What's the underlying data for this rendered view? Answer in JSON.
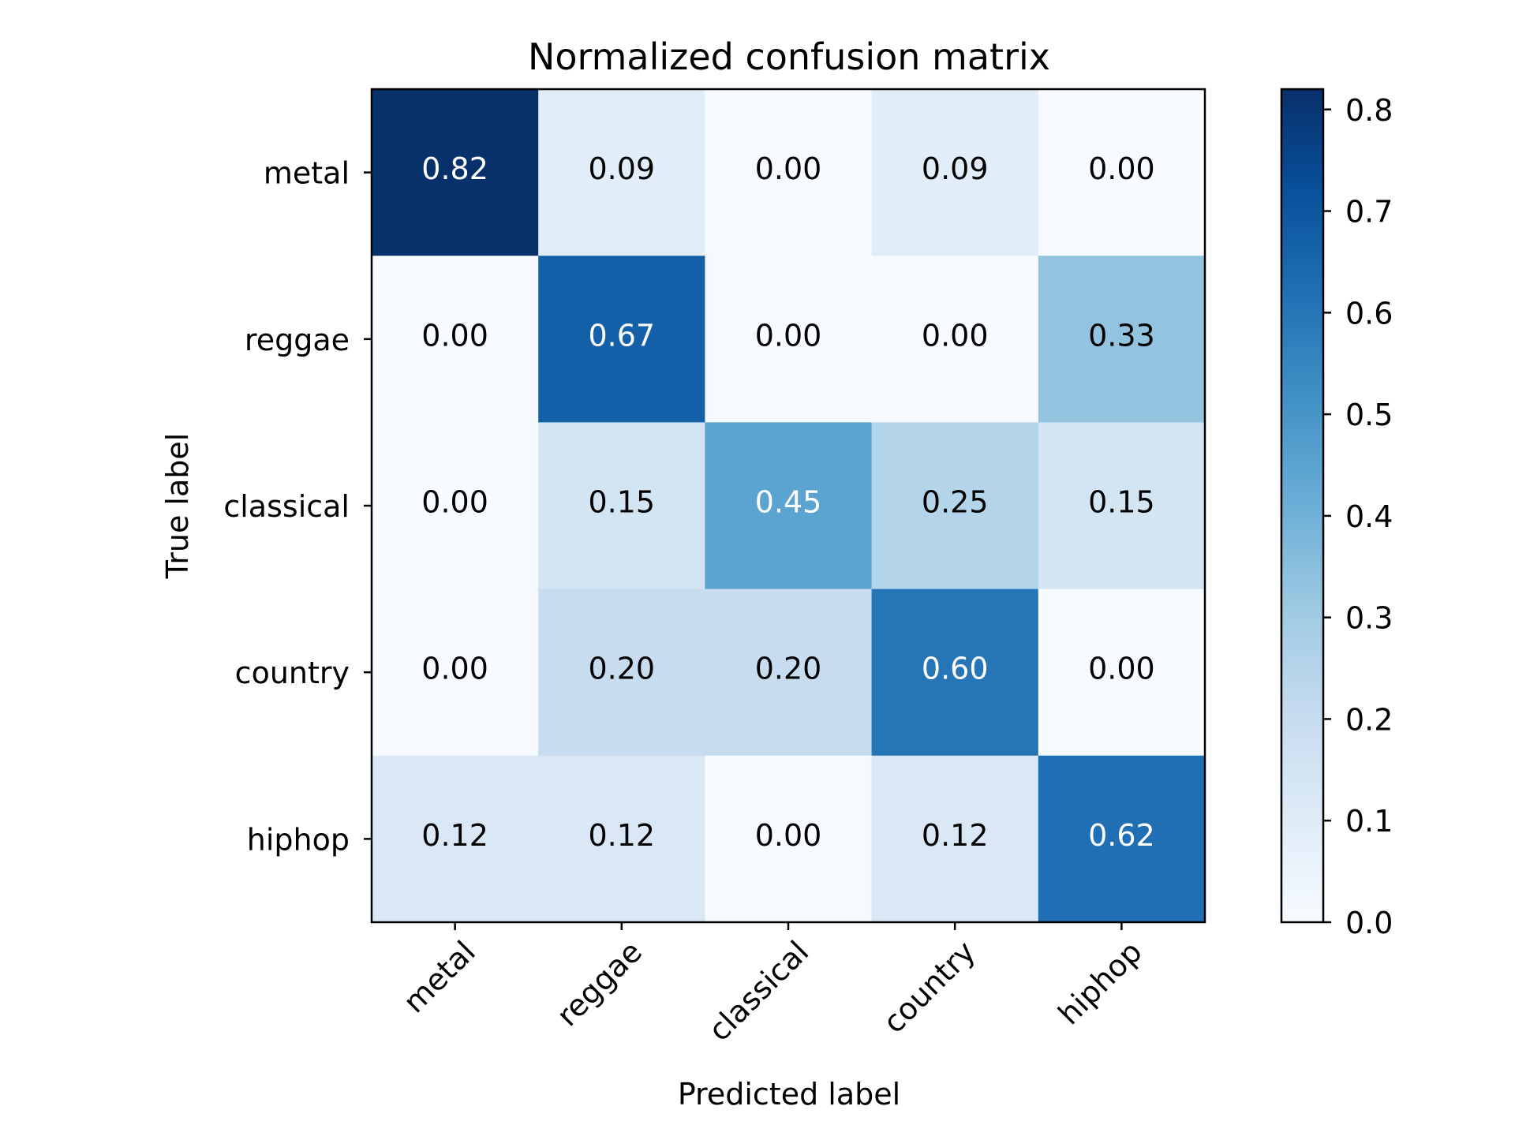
{
  "chart_data": {
    "type": "heatmap",
    "title": "Normalized confusion matrix",
    "xlabel": "Predicted label",
    "ylabel": "True label",
    "x_categories": [
      "metal",
      "reggae",
      "classical",
      "country",
      "hiphop"
    ],
    "y_categories": [
      "metal",
      "reggae",
      "classical",
      "country",
      "hiphop"
    ],
    "values": [
      [
        0.82,
        0.09,
        0.0,
        0.09,
        0.0
      ],
      [
        0.0,
        0.67,
        0.0,
        0.0,
        0.33
      ],
      [
        0.0,
        0.15,
        0.45,
        0.25,
        0.15
      ],
      [
        0.0,
        0.2,
        0.2,
        0.6,
        0.0
      ],
      [
        0.12,
        0.12,
        0.0,
        0.12,
        0.62
      ]
    ],
    "value_labels": [
      [
        "0.82",
        "0.09",
        "0.00",
        "0.09",
        "0.00"
      ],
      [
        "0.00",
        "0.67",
        "0.00",
        "0.00",
        "0.33"
      ],
      [
        "0.00",
        "0.15",
        "0.45",
        "0.25",
        "0.15"
      ],
      [
        "0.00",
        "0.20",
        "0.20",
        "0.60",
        "0.00"
      ],
      [
        "0.12",
        "0.12",
        "0.00",
        "0.12",
        "0.62"
      ]
    ],
    "colormap": "Blues",
    "colorbar": {
      "range": [
        0.0,
        0.82
      ],
      "ticks": [
        0.0,
        0.1,
        0.2,
        0.3,
        0.4,
        0.5,
        0.6,
        0.7,
        0.8
      ],
      "tick_labels": [
        "0.0",
        "0.1",
        "0.2",
        "0.3",
        "0.4",
        "0.5",
        "0.6",
        "0.7",
        "0.8"
      ]
    },
    "grid": false
  }
}
